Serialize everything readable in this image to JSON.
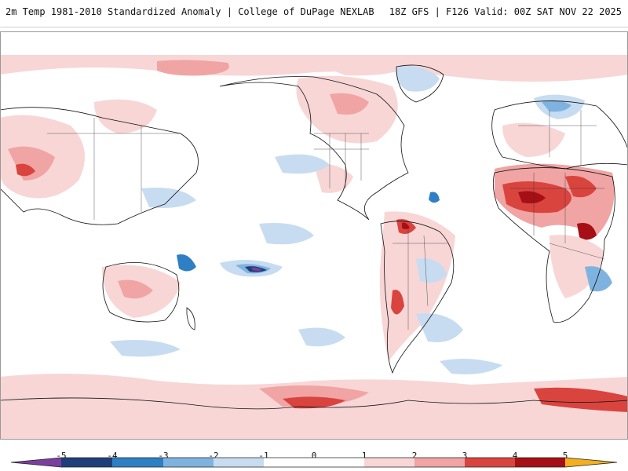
{
  "header": {
    "title": "2m Temp 1981-2010 Standardized Anomaly | College of DuPage NEXLAB",
    "run_info": "18Z GFS | F126 Valid: 00Z SAT NOV 22 2025"
  },
  "map": {
    "variable": "2m temperature standardized anomaly",
    "projection": "global equirectangular, Pacific-centered"
  },
  "legend": {
    "ticks": [
      "-5",
      "-4",
      "-3",
      "-2",
      "-1",
      "0",
      "1",
      "2",
      "3",
      "4",
      "5"
    ],
    "colors": {
      "below_min": "#7b3f9e",
      "neg5_to_neg4": "#1f3f7a",
      "neg4_to_neg3": "#2e7fc4",
      "neg3_to_neg2": "#7fb3df",
      "neg2_to_neg1": "#c7dcf0",
      "neg1_to_1": "#ffffff",
      "pos1_to_pos2": "#f8d6d6",
      "pos2_to_pos3": "#f0a4a4",
      "pos3_to_pos4": "#d9443f",
      "pos4_to_pos5": "#a50f15",
      "above_max": "#f2b01e"
    }
  }
}
